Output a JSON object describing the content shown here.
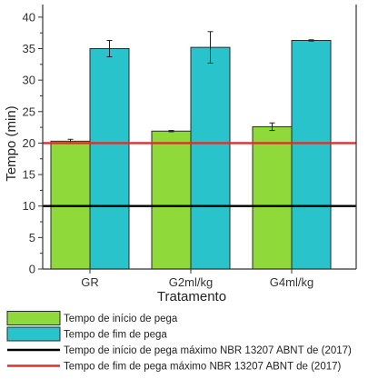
{
  "chart_data": {
    "type": "bar",
    "xlabel": "Tratamento",
    "ylabel": "Tempo (min)",
    "ylim": [
      0,
      42
    ],
    "yticks": [
      0,
      5,
      10,
      15,
      20,
      25,
      30,
      35,
      40
    ],
    "grid": false,
    "categories": [
      "GR",
      "G2ml/kg",
      "G4ml/kg"
    ],
    "series": [
      {
        "name": "Tempo de início de pega",
        "color": "#8fd93a",
        "values": [
          20.3,
          21.9,
          22.6
        ],
        "errors": [
          0.3,
          0.1,
          0.6
        ]
      },
      {
        "name": "Tempo de fim de pega",
        "color": "#29c4cb",
        "values": [
          35.0,
          35.2,
          36.3
        ],
        "errors": [
          1.3,
          2.5,
          0.1
        ]
      }
    ],
    "reference_lines": [
      {
        "name": "Tempo de início de pega máximo NBR 13207 ABNT de (2017)",
        "value": 10,
        "color": "#000000"
      },
      {
        "name": "Tempo de fim de pega máximo NBR 13207 ABNT de (2017)",
        "value": 20,
        "color": "#d93030"
      }
    ],
    "legend_position": "bottom"
  }
}
